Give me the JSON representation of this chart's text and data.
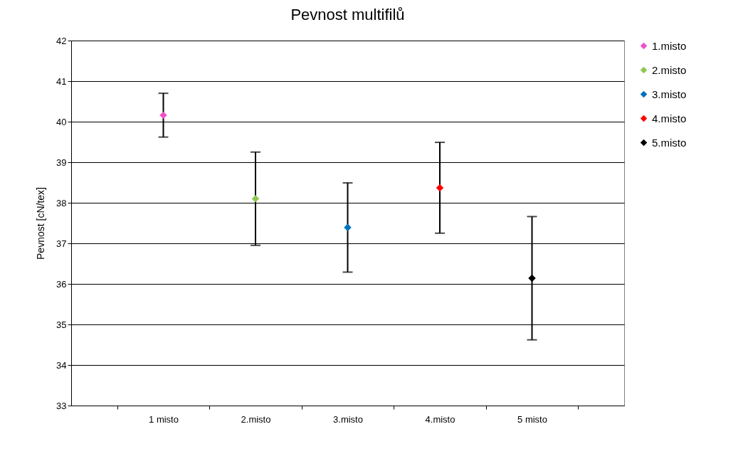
{
  "chart_data": {
    "type": "scatter",
    "title": "Pevnost multifilů",
    "ylabel": "Pevnost [cN/tex]",
    "categories": [
      "1 misto",
      "2.misto",
      "3.misto",
      "4.misto",
      "5 misto"
    ],
    "series": [
      {
        "name": "1.misto",
        "color": "#f050c8",
        "values": [
          40.16,
          null,
          null,
          null,
          null
        ],
        "errors": [
          0.54,
          null,
          null,
          null,
          null
        ]
      },
      {
        "name": "2.misto",
        "color": "#8cc850",
        "values": [
          null,
          38.1,
          null,
          null,
          null
        ],
        "errors": [
          null,
          1.15,
          null,
          null,
          null
        ]
      },
      {
        "name": "3.misto",
        "color": "#0070c0",
        "values": [
          null,
          null,
          37.39,
          null,
          null
        ],
        "errors": [
          null,
          null,
          1.1,
          null,
          null
        ]
      },
      {
        "name": "4.misto",
        "color": "#ff0000",
        "values": [
          null,
          null,
          null,
          38.37,
          null
        ],
        "errors": [
          null,
          null,
          null,
          1.12,
          null
        ]
      },
      {
        "name": "5.misto",
        "color": "#000000",
        "values": [
          null,
          null,
          null,
          null,
          36.14
        ],
        "errors": [
          null,
          null,
          null,
          null,
          1.52
        ]
      }
    ],
    "ylim": [
      33,
      42
    ],
    "yticks": [
      33,
      34,
      35,
      36,
      37,
      38,
      39,
      40,
      41,
      42
    ],
    "grid": "y",
    "legend": "right",
    "marker": "diamond"
  }
}
